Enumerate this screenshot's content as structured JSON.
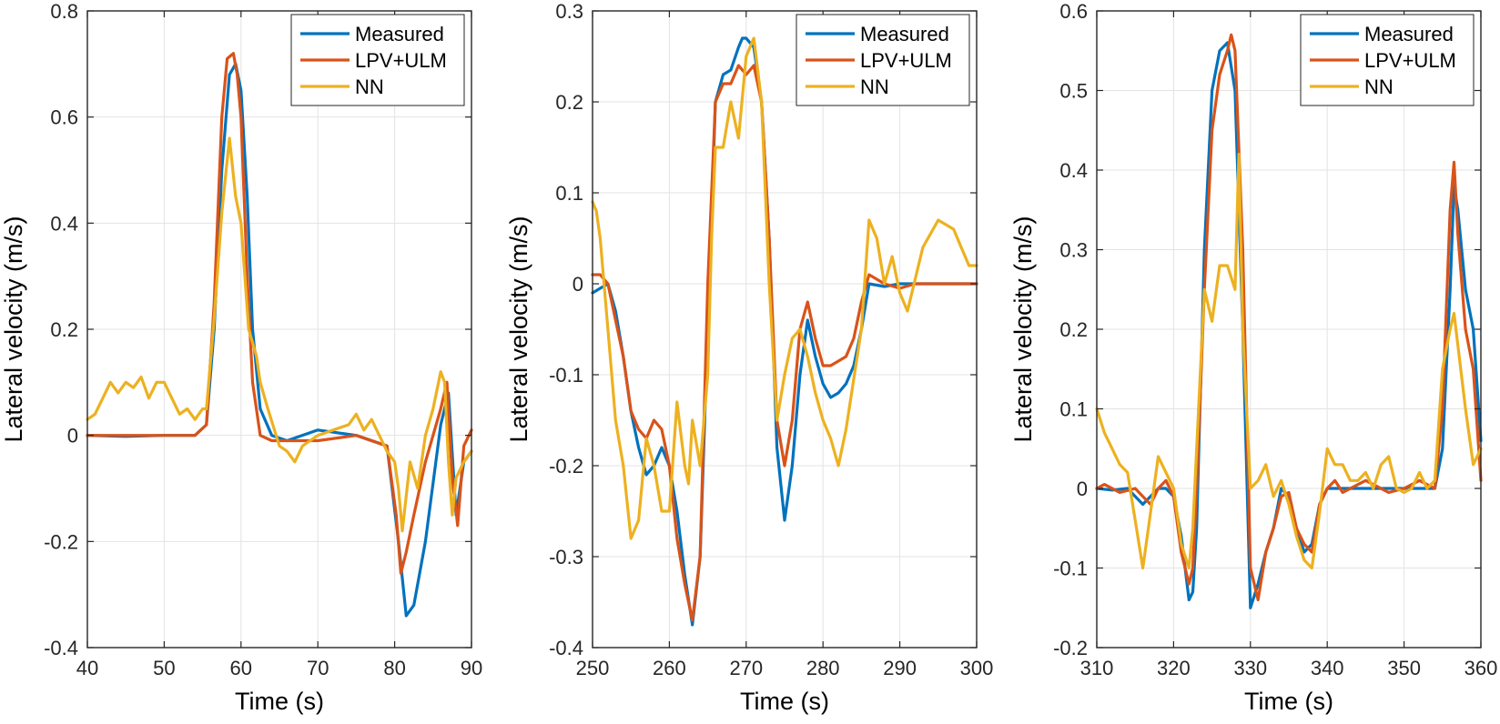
{
  "colors": {
    "Measured": "#0072BD",
    "LPV+ULM": "#D95319",
    "NN": "#EDB120"
  },
  "chart_data": [
    {
      "type": "line",
      "xlabel": "Time (s)",
      "ylabel": "Lateral velocity (m/s)",
      "xlim": [
        40,
        90
      ],
      "ylim": [
        -0.4,
        0.8
      ],
      "xticks": [
        40,
        50,
        60,
        70,
        80,
        90
      ],
      "xtick_labels": [
        "40",
        "50",
        "60",
        "70",
        "80",
        "90"
      ],
      "yticks": [
        -0.4,
        -0.2,
        0,
        0.2,
        0.4,
        0.6,
        0.8
      ],
      "ytick_labels": [
        "-0.4",
        "-0.2",
        "0",
        "0.2",
        "0.4",
        "0.6",
        "0.8"
      ],
      "grid": true,
      "legend": "top-right",
      "legend_entries": [
        "Measured",
        "LPV+ULM",
        "NN"
      ],
      "series": [
        {
          "name": "Measured",
          "x": [
            40,
            45,
            50,
            54,
            55.5,
            56.5,
            57.5,
            58.5,
            59.3,
            60,
            60.8,
            61.5,
            62.5,
            64,
            66,
            70,
            75,
            79,
            80.5,
            81.5,
            82.5,
            84,
            86,
            87,
            88,
            89,
            90
          ],
          "y": [
            0,
            -0.002,
            0,
            0,
            0.02,
            0.2,
            0.5,
            0.68,
            0.7,
            0.65,
            0.45,
            0.2,
            0.05,
            0,
            -0.01,
            0.01,
            0,
            -0.02,
            -0.2,
            -0.34,
            -0.32,
            -0.2,
            0.02,
            0.08,
            -0.15,
            -0.05,
            -0.03
          ]
        },
        {
          "name": "LPV+ULM",
          "x": [
            40,
            45,
            50,
            54,
            55.5,
            56.5,
            57.5,
            58.2,
            59,
            59.5,
            60,
            60.8,
            61.5,
            62.5,
            64,
            66,
            70,
            75,
            79,
            80.2,
            80.8,
            81.5,
            82.5,
            84,
            86,
            86.8,
            87.5,
            88.2,
            89,
            90
          ],
          "y": [
            0,
            0,
            0,
            0,
            0.02,
            0.25,
            0.6,
            0.71,
            0.72,
            0.68,
            0.6,
            0.3,
            0.1,
            0,
            -0.01,
            -0.01,
            -0.01,
            0,
            -0.02,
            -0.15,
            -0.26,
            -0.22,
            -0.15,
            -0.05,
            0.05,
            0.1,
            -0.08,
            -0.17,
            -0.02,
            0.01
          ]
        },
        {
          "name": "NN",
          "x": [
            40,
            41,
            42,
            43,
            44,
            45,
            46,
            47,
            48,
            49,
            50,
            51,
            52,
            53,
            54,
            55,
            55.5,
            56.5,
            57.5,
            58.5,
            59.3,
            60,
            60.5,
            61,
            62,
            62.5,
            63.5,
            65,
            66,
            67,
            68,
            70,
            72,
            74,
            75,
            76,
            77,
            78,
            79,
            80,
            80.5,
            81,
            82,
            83,
            84,
            85,
            86,
            86.5,
            87,
            87.5,
            88,
            89,
            90
          ],
          "y": [
            0.03,
            0.04,
            0.07,
            0.1,
            0.08,
            0.1,
            0.09,
            0.11,
            0.07,
            0.1,
            0.1,
            0.07,
            0.04,
            0.05,
            0.03,
            0.05,
            0.05,
            0.22,
            0.42,
            0.56,
            0.45,
            0.4,
            0.3,
            0.2,
            0.15,
            0.1,
            0.05,
            -0.02,
            -0.03,
            -0.05,
            -0.02,
            0,
            0.01,
            0.02,
            0.04,
            0.01,
            0.03,
            0,
            -0.03,
            -0.05,
            -0.1,
            -0.18,
            -0.05,
            -0.1,
            0,
            0.05,
            0.12,
            0.1,
            -0.05,
            -0.15,
            -0.08,
            -0.05,
            -0.03
          ]
        }
      ]
    },
    {
      "type": "line",
      "xlabel": "Time (s)",
      "ylabel": "Lateral velocity (m/s)",
      "xlim": [
        250,
        300
      ],
      "ylim": [
        -0.4,
        0.3
      ],
      "xticks": [
        250,
        260,
        270,
        280,
        290,
        300
      ],
      "xtick_labels": [
        "250",
        "260",
        "270",
        "280",
        "290",
        "300"
      ],
      "yticks": [
        -0.4,
        -0.3,
        -0.2,
        -0.1,
        0,
        0.1,
        0.2,
        0.3
      ],
      "ytick_labels": [
        "-0.4",
        "-0.3",
        "-0.2",
        "-0.1",
        "0",
        "0.1",
        "0.2",
        "0.3"
      ],
      "grid": true,
      "legend": "top-right",
      "legend_entries": [
        "Measured",
        "LPV+ULM",
        "NN"
      ],
      "series": [
        {
          "name": "Measured",
          "x": [
            250,
            251,
            252,
            253,
            254,
            255,
            256,
            257,
            258,
            259,
            260,
            261,
            262,
            263,
            264,
            265,
            266,
            267,
            268,
            269,
            269.5,
            270,
            271,
            272,
            273,
            274,
            275,
            276,
            277,
            278,
            279,
            280,
            281,
            282,
            283,
            284,
            285,
            286,
            288,
            290,
            292,
            295,
            298,
            300
          ],
          "y": [
            -0.01,
            -0.005,
            0,
            -0.03,
            -0.08,
            -0.14,
            -0.18,
            -0.21,
            -0.2,
            -0.18,
            -0.2,
            -0.25,
            -0.32,
            -0.375,
            -0.3,
            -0.05,
            0.2,
            0.23,
            0.235,
            0.26,
            0.27,
            0.27,
            0.26,
            0.2,
            0.05,
            -0.18,
            -0.26,
            -0.2,
            -0.1,
            -0.04,
            -0.08,
            -0.11,
            -0.125,
            -0.12,
            -0.11,
            -0.09,
            -0.05,
            0,
            -0.003,
            0,
            0,
            0,
            0,
            0
          ]
        },
        {
          "name": "LPV+ULM",
          "x": [
            250,
            251,
            252,
            253,
            254,
            255,
            256,
            257,
            258,
            259,
            260,
            261,
            262,
            263,
            264,
            265,
            266,
            267,
            268,
            269,
            270,
            271,
            272,
            273,
            274,
            275,
            276,
            277,
            278,
            279,
            280,
            281,
            282,
            283,
            284,
            285,
            286,
            288,
            290,
            292,
            295,
            298,
            300
          ],
          "y": [
            0.01,
            0.01,
            0,
            -0.04,
            -0.08,
            -0.14,
            -0.16,
            -0.17,
            -0.15,
            -0.16,
            -0.2,
            -0.28,
            -0.33,
            -0.37,
            -0.3,
            0,
            0.2,
            0.22,
            0.22,
            0.24,
            0.23,
            0.24,
            0.2,
            0.05,
            -0.15,
            -0.2,
            -0.15,
            -0.05,
            -0.02,
            -0.06,
            -0.09,
            -0.09,
            -0.085,
            -0.08,
            -0.06,
            -0.02,
            0.01,
            0,
            -0.005,
            0,
            0,
            0,
            0
          ]
        },
        {
          "name": "NN",
          "x": [
            250,
            250.5,
            251,
            252,
            253,
            254,
            255,
            256,
            257,
            258,
            259,
            260,
            261,
            262,
            262.5,
            263,
            264,
            265,
            265.5,
            266,
            267,
            268,
            269,
            270,
            271,
            272,
            273,
            274,
            275,
            276,
            277,
            278,
            279,
            280,
            281,
            282,
            283,
            285,
            286,
            287,
            288,
            289,
            290,
            291,
            293,
            295,
            297,
            298,
            299,
            300
          ],
          "y": [
            0.09,
            0.08,
            0.05,
            -0.05,
            -0.15,
            -0.2,
            -0.28,
            -0.26,
            -0.17,
            -0.2,
            -0.25,
            -0.25,
            -0.13,
            -0.2,
            -0.22,
            -0.15,
            -0.2,
            -0.1,
            0.05,
            0.15,
            0.15,
            0.2,
            0.16,
            0.25,
            0.27,
            0.2,
            0,
            -0.15,
            -0.1,
            -0.06,
            -0.05,
            -0.08,
            -0.12,
            -0.15,
            -0.17,
            -0.2,
            -0.16,
            -0.05,
            0.07,
            0.05,
            0,
            0.03,
            -0.01,
            -0.03,
            0.04,
            0.07,
            0.06,
            0.04,
            0.02,
            0.02
          ]
        }
      ]
    },
    {
      "type": "line",
      "xlabel": "Time (s)",
      "ylabel": "Lateral velocity (m/s)",
      "xlim": [
        310,
        360
      ],
      "ylim": [
        -0.2,
        0.6
      ],
      "xticks": [
        310,
        320,
        330,
        340,
        350,
        360
      ],
      "xtick_labels": [
        "310",
        "320",
        "330",
        "340",
        "350",
        "360"
      ],
      "yticks": [
        -0.2,
        -0.1,
        0,
        0.1,
        0.2,
        0.3,
        0.4,
        0.5,
        0.6
      ],
      "ytick_labels": [
        "-0.2",
        "-0.1",
        "0",
        "0.1",
        "0.2",
        "0.3",
        "0.4",
        "0.5",
        "0.6"
      ],
      "grid": true,
      "legend": "top-right",
      "legend_entries": [
        "Measured",
        "LPV+ULM",
        "NN"
      ],
      "series": [
        {
          "name": "Measured",
          "x": [
            310,
            312,
            314,
            315,
            316,
            317,
            318,
            319,
            320,
            321,
            322,
            322.5,
            323,
            324,
            325,
            326,
            327,
            328,
            329,
            330,
            331,
            332,
            333,
            334,
            335,
            336,
            337,
            338,
            339,
            340,
            345,
            350,
            354,
            355,
            356,
            356.5,
            357,
            358,
            359,
            360
          ],
          "y": [
            0,
            -0.002,
            0,
            -0.01,
            -0.02,
            -0.01,
            0,
            0,
            -0.01,
            -0.06,
            -0.14,
            -0.13,
            -0.05,
            0.3,
            0.5,
            0.55,
            0.56,
            0.5,
            0.2,
            -0.15,
            -0.12,
            -0.08,
            -0.05,
            0,
            -0.01,
            -0.05,
            -0.08,
            -0.07,
            -0.02,
            0,
            0,
            0,
            0,
            0.05,
            0.25,
            0.38,
            0.35,
            0.25,
            0.2,
            0.06
          ]
        },
        {
          "name": "LPV+ULM",
          "x": [
            310,
            311,
            313,
            315,
            316,
            317,
            318,
            319,
            320,
            321,
            322,
            322.5,
            323,
            324,
            325,
            326,
            327,
            327.5,
            328,
            329,
            330,
            331,
            332,
            333,
            334,
            335,
            336,
            337,
            338,
            339,
            340,
            341,
            342,
            345,
            348,
            350,
            352,
            354,
            355,
            356,
            356.5,
            357,
            358,
            359,
            360
          ],
          "y": [
            0,
            0.005,
            -0.005,
            0,
            -0.01,
            -0.02,
            0,
            0.01,
            -0.01,
            -0.08,
            -0.12,
            -0.1,
            0,
            0.25,
            0.45,
            0.52,
            0.55,
            0.57,
            0.55,
            0.3,
            -0.1,
            -0.14,
            -0.08,
            -0.05,
            -0.01,
            -0.005,
            -0.05,
            -0.07,
            -0.08,
            -0.02,
            0,
            0.01,
            -0.005,
            0.01,
            -0.005,
            0,
            0.01,
            0,
            0.1,
            0.35,
            0.41,
            0.32,
            0.2,
            0.15,
            0.01
          ]
        },
        {
          "name": "NN",
          "x": [
            310,
            311,
            312,
            313,
            314,
            315,
            315.5,
            316,
            317,
            318,
            319,
            320,
            321,
            322,
            322.5,
            323,
            324,
            325,
            326,
            327,
            328,
            328.5,
            329,
            330,
            331,
            332,
            333,
            334,
            335,
            336,
            337,
            338,
            339,
            340,
            341,
            342,
            343,
            344,
            345,
            346,
            347,
            348,
            349,
            350,
            351,
            352,
            353,
            354,
            355,
            356,
            356.5,
            357,
            358,
            359,
            360
          ],
          "y": [
            0.1,
            0.07,
            0.05,
            0.03,
            0.02,
            -0.04,
            -0.07,
            -0.1,
            -0.03,
            0.04,
            0.02,
            0,
            -0.07,
            -0.1,
            -0.05,
            0.05,
            0.25,
            0.21,
            0.28,
            0.28,
            0.25,
            0.42,
            0.2,
            0,
            0.01,
            0.03,
            -0.01,
            0.01,
            -0.02,
            -0.06,
            -0.09,
            -0.1,
            -0.03,
            0.05,
            0.03,
            0.03,
            0.01,
            0.01,
            0.02,
            0,
            0.03,
            0.04,
            0,
            -0.005,
            0,
            0.02,
            0,
            0.01,
            0.15,
            0.2,
            0.22,
            0.18,
            0.1,
            0.03,
            0.05
          ]
        }
      ]
    }
  ]
}
